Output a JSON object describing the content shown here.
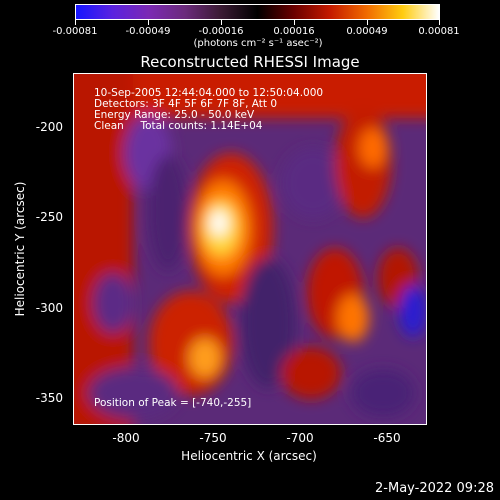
{
  "colorbar": {
    "ticks": [
      "-0.00081",
      "-0.00049",
      "-0.00016",
      "0.00016",
      "0.00049",
      "0.00081"
    ],
    "units": "(photons cm⁻² s⁻¹ asec⁻²)"
  },
  "plot": {
    "title": "Reconstructed RHESSI Image",
    "xlabel": "Heliocentric X (arcsec)",
    "ylabel": "Heliocentric Y (arcsec)",
    "xticks": [
      "-800",
      "-750",
      "-700",
      "-650"
    ],
    "yticks": [
      "-200",
      "-250",
      "-300",
      "-350"
    ],
    "info": [
      "10-Sep-2005 12:44:04.000 to 12:50:04.000",
      "Detectors: 3F 4F 5F 6F 7F 8F, Att 0",
      "Energy Range: 25.0 - 50.0 keV",
      "Clean     Total counts: 1.14E+04"
    ],
    "peak": "Position of Peak = [-740,-255]"
  },
  "footer": {
    "timestamp": "2-May-2022 09:28"
  },
  "colors": {
    "background": "#000000",
    "peak_color": "#ffffff",
    "positive_high": "#ffcc10",
    "negative_low": "#1515ff"
  }
}
